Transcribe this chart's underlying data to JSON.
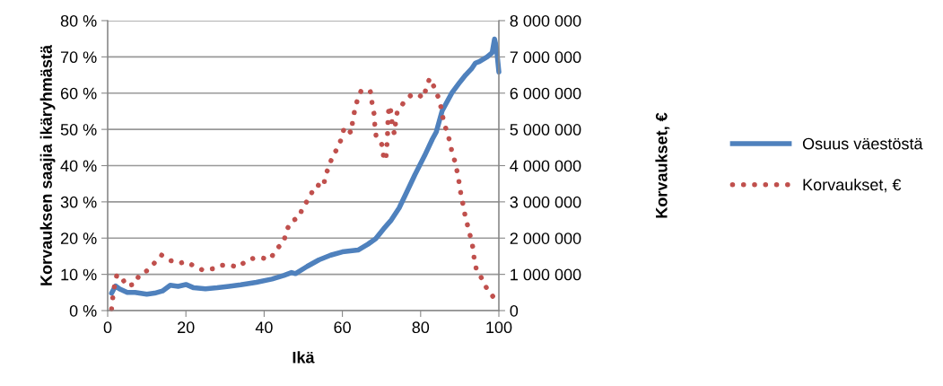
{
  "chart_data": {
    "type": "line",
    "xlabel": "Ikä",
    "ylabel": "Korvauksen saajia ikäryhmästä",
    "y2label": "Korvaukset, €",
    "xlim": [
      0,
      100
    ],
    "xticks": [
      0,
      20,
      40,
      60,
      80,
      100
    ],
    "ylim": [
      0,
      80
    ],
    "yticks": [
      {
        "value": 0,
        "label": "0 %"
      },
      {
        "value": 10,
        "label": "10 %"
      },
      {
        "value": 20,
        "label": "20 %"
      },
      {
        "value": 30,
        "label": "30 %"
      },
      {
        "value": 40,
        "label": "40 %"
      },
      {
        "value": 50,
        "label": "50 %"
      },
      {
        "value": 60,
        "label": "60 %"
      },
      {
        "value": 70,
        "label": "70 %"
      },
      {
        "value": 80,
        "label": "80 %"
      }
    ],
    "y2lim": [
      0,
      8000000
    ],
    "y2ticks": [
      {
        "value": 0,
        "label": "0"
      },
      {
        "value": 1000000,
        "label": "1 000 000"
      },
      {
        "value": 2000000,
        "label": "2 000 000"
      },
      {
        "value": 3000000,
        "label": "3 000 000"
      },
      {
        "value": 4000000,
        "label": "4 000 000"
      },
      {
        "value": 5000000,
        "label": "5 000 000"
      },
      {
        "value": 6000000,
        "label": "6 000 000"
      },
      {
        "value": 7000000,
        "label": "7 000 000"
      },
      {
        "value": 8000000,
        "label": "8 000 000"
      }
    ],
    "grid": "y",
    "legend": "right",
    "series": [
      {
        "name": "Osuus väestöstä",
        "color": "#4f81bd",
        "line_style": "solid",
        "x": [
          1,
          2,
          3,
          5,
          7,
          10,
          12,
          14,
          16,
          18,
          20,
          22,
          25,
          28,
          31,
          34,
          38,
          42,
          45,
          47,
          48,
          51,
          54,
          57,
          60,
          64,
          66.5,
          68.5,
          70.5,
          72.5,
          74.5,
          76.5,
          78.5,
          81,
          83,
          84,
          85.5,
          88,
          90,
          91.5,
          93,
          94,
          95,
          97,
          98.3,
          98.9,
          99.4,
          100
        ],
        "values": [
          4.8,
          6.8,
          6.0,
          5.0,
          5.0,
          4.5,
          4.8,
          5.4,
          7.0,
          6.7,
          7.2,
          6.3,
          6.0,
          6.3,
          6.7,
          7.1,
          7.8,
          8.7,
          9.7,
          10.5,
          10.2,
          12.2,
          14.0,
          15.3,
          16.2,
          16.7,
          18.3,
          19.8,
          22.5,
          25.0,
          28.3,
          32.8,
          37.4,
          42.7,
          47.3,
          49.3,
          55.1,
          60.1,
          63.0,
          65.0,
          66.7,
          68.3,
          68.7,
          70.0,
          71.2,
          74.9,
          72.4,
          65.8
        ]
      },
      {
        "name": "Korvaukset, €",
        "color": "#c0504d",
        "line_style": "dotted",
        "axis": "y2",
        "x": [
          1,
          1.3,
          1.7,
          2.3,
          3.5,
          4.6,
          6.9,
          8.1,
          10.4,
          12,
          13.8,
          15.8,
          18.3,
          19.8,
          22,
          24.4,
          27.1,
          28.8,
          30.9,
          33.4,
          35.6,
          37.5,
          39.5,
          41.6,
          43,
          45,
          45.6,
          46.8,
          49.1,
          49.8,
          51.6,
          52.6,
          53.5,
          55.2,
          55.6,
          56.7,
          57.5,
          58.8,
          59.8,
          60.5,
          61.5,
          62.2,
          62.6,
          63.1,
          63.8,
          64.8,
          66.3,
          67.2,
          67.6,
          68.1,
          68.3,
          68.6,
          69.5,
          70.2,
          70.5,
          71.1,
          71.3,
          71.5,
          71.7,
          71.9,
          72.3,
          72.6,
          73,
          73.3,
          73.6,
          74,
          75.6,
          77.5,
          79.4,
          80.6,
          81.5,
          82.3,
          83.6,
          84.6,
          85.3,
          85.8,
          86.6,
          87.4,
          88,
          88.8,
          89.4,
          89.9,
          90.3,
          90.9,
          91.4,
          92.1,
          92.8,
          93.4,
          93.7,
          94.3,
          95.8,
          97,
          98.7,
          100
        ],
        "values": [
          50000,
          350000,
          660000,
          960000,
          970000,
          690000,
          720000,
          990000,
          1120000,
          1320000,
          1530000,
          1390000,
          1300000,
          1350000,
          1240000,
          1110000,
          1160000,
          1250000,
          1260000,
          1200000,
          1390000,
          1450000,
          1450000,
          1420000,
          1690000,
          1880000,
          2180000,
          2450000,
          2590000,
          2860000,
          3100000,
          3370000,
          3470000,
          3410000,
          3720000,
          4000000,
          4280000,
          4480000,
          4760000,
          5060000,
          5000000,
          4900000,
          5200000,
          5500000,
          5800000,
          6070000,
          6000000,
          6040000,
          5720000,
          5430000,
          5120000,
          4830000,
          4730000,
          4550000,
          4260000,
          4140000,
          4460000,
          4740000,
          5360000,
          5650000,
          5580000,
          5260000,
          4980000,
          4880000,
          5180000,
          5470000,
          5730000,
          5940000,
          5970000,
          5860000,
          6150000,
          6410000,
          6140000,
          5860000,
          5570000,
          5260000,
          4970000,
          4690000,
          4380000,
          4100000,
          3800000,
          3500000,
          3200000,
          2900000,
          2600000,
          2310000,
          2010000,
          1720000,
          1420000,
          1110000,
          860000,
          590000,
          360000,
          150000
        ]
      }
    ]
  }
}
